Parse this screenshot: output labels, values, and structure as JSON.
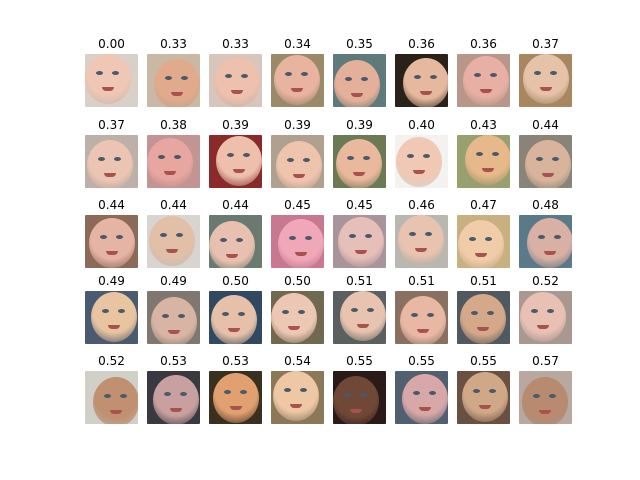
{
  "faces": [
    {
      "score": "0.00",
      "bg": "#d9d0c8",
      "skin": "#f0c6b4"
    },
    {
      "score": "0.33",
      "bg": "#c9b8a4",
      "skin": "#e2aa8c"
    },
    {
      "score": "0.33",
      "bg": "#d8c6bc",
      "skin": "#eec0ae"
    },
    {
      "score": "0.34",
      "bg": "#9b8a6a",
      "skin": "#e8b4a0"
    },
    {
      "score": "0.35",
      "bg": "#5f7a7a",
      "skin": "#e4b09a"
    },
    {
      "score": "0.36",
      "bg": "#2a2218",
      "skin": "#e6b89e"
    },
    {
      "score": "0.36",
      "bg": "#b8968a",
      "skin": "#e8b0a4"
    },
    {
      "score": "0.37",
      "bg": "#a88660",
      "skin": "#e6c2a8"
    },
    {
      "score": "0.37",
      "bg": "#bcb0a8",
      "skin": "#ecc4b4"
    },
    {
      "score": "0.38",
      "bg": "#c29494",
      "skin": "#e8a6a0"
    },
    {
      "score": "0.39",
      "bg": "#8a2a2a",
      "skin": "#eec0ac"
    },
    {
      "score": "0.39",
      "bg": "#b0a090",
      "skin": "#eec4ac"
    },
    {
      "score": "0.39",
      "bg": "#6b7a54",
      "skin": "#eab89c"
    },
    {
      "score": "0.40",
      "bg": "#f4f2f0",
      "skin": "#f0c8b4"
    },
    {
      "score": "0.43",
      "bg": "#98a070",
      "skin": "#e6b88a"
    },
    {
      "score": "0.44",
      "bg": "#8a8478",
      "skin": "#d8b49c"
    },
    {
      "score": "0.44",
      "bg": "#8c6a5a",
      "skin": "#e6b4a4"
    },
    {
      "score": "0.44",
      "bg": "#d8d4d0",
      "skin": "#e2c0a8"
    },
    {
      "score": "0.44",
      "bg": "#6a7a70",
      "skin": "#e8c0b0"
    },
    {
      "score": "0.45",
      "bg": "#c87890",
      "skin": "#f0a8b8"
    },
    {
      "score": "0.45",
      "bg": "#a8949a",
      "skin": "#e6c0b8"
    },
    {
      "score": "0.46",
      "bg": "#b8b8b0",
      "skin": "#e8c4b0"
    },
    {
      "score": "0.47",
      "bg": "#c8b080",
      "skin": "#f0cca8"
    },
    {
      "score": "0.48",
      "bg": "#5a7a8a",
      "skin": "#d8b0a4"
    },
    {
      "score": "0.49",
      "bg": "#4a5a70",
      "skin": "#e8c4a0"
    },
    {
      "score": "0.49",
      "bg": "#807870",
      "skin": "#d8b4a4"
    },
    {
      "score": "0.50",
      "bg": "#304860",
      "skin": "#e6c0a8"
    },
    {
      "score": "0.50",
      "bg": "#706850",
      "skin": "#ecc8b4"
    },
    {
      "score": "0.51",
      "bg": "#5a6060",
      "skin": "#e8c4b0"
    },
    {
      "score": "0.51",
      "bg": "#8a7060",
      "skin": "#e8b8a4"
    },
    {
      "score": "0.51",
      "bg": "#505860",
      "skin": "#d4a888"
    },
    {
      "score": "0.52",
      "bg": "#a89890",
      "skin": "#e8c0b4"
    },
    {
      "score": "0.52",
      "bg": "#d0d0c8",
      "skin": "#c09070"
    },
    {
      "score": "0.53",
      "bg": "#3a3840",
      "skin": "#c8a0a0"
    },
    {
      "score": "0.53",
      "bg": "#3a3020",
      "skin": "#e0a070"
    },
    {
      "score": "0.54",
      "bg": "#8a7858",
      "skin": "#eec8a4"
    },
    {
      "score": "0.55",
      "bg": "#2a1a18",
      "skin": "#704838"
    },
    {
      "score": "0.55",
      "bg": "#506070",
      "skin": "#d8a8a8"
    },
    {
      "score": "0.55",
      "bg": "#6a5040",
      "skin": "#d0a888"
    },
    {
      "score": "0.57",
      "bg": "#b8a8a0",
      "skin": "#b88a70"
    }
  ]
}
